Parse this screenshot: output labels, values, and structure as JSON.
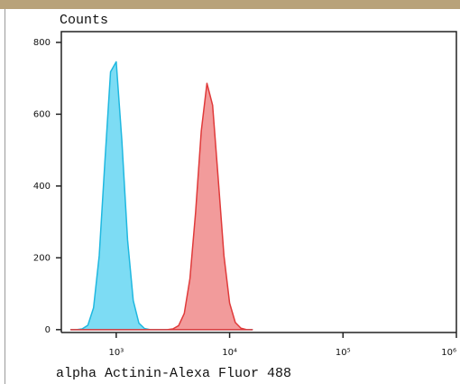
{
  "chart_data": {
    "type": "area",
    "ylabel": "Counts",
    "xlabel": "alpha Actinin-Alexa Fluor 488",
    "x_log": true,
    "x": [
      398,
      447,
      501,
      562,
      631,
      708,
      794,
      891,
      1000,
      1122,
      1259,
      1413,
      1585,
      1778,
      1995,
      2239,
      2512,
      2818,
      3162,
      3548,
      3981,
      4467,
      5012,
      5623,
      6310,
      7079,
      7943,
      8913,
      10000,
      11220,
      12589,
      14125,
      15849
    ],
    "series": [
      {
        "color": "#1fb8e0",
        "fill": "#66d6f2",
        "values": [
          0,
          0,
          2,
          12,
          61,
          206,
          467,
          718,
          746,
          525,
          250,
          81,
          18,
          3,
          0,
          0,
          0,
          0,
          0,
          0,
          0,
          0,
          0,
          0,
          0,
          0,
          0,
          0,
          0,
          0,
          0,
          0,
          0
        ]
      },
      {
        "color": "#e03a3a",
        "fill": "#f08a8a",
        "values": [
          0,
          0,
          0,
          0,
          0,
          0,
          0,
          0,
          0,
          0,
          0,
          0,
          0,
          0,
          0,
          0,
          0,
          0,
          2,
          11,
          45,
          142,
          327,
          553,
          686,
          625,
          418,
          206,
          74,
          20,
          4,
          0,
          0
        ]
      }
    ],
    "xlim": [
      328,
      1000000
    ],
    "xticks": [
      {
        "value": 1000,
        "label": "10³"
      },
      {
        "value": 10000,
        "label": "10⁴"
      },
      {
        "value": 100000,
        "label": "10⁵"
      },
      {
        "value": 1000000,
        "label": "10⁶"
      }
    ],
    "ylim": [
      -8,
      830
    ],
    "yticks": [
      0,
      200,
      400,
      600,
      800
    ]
  }
}
